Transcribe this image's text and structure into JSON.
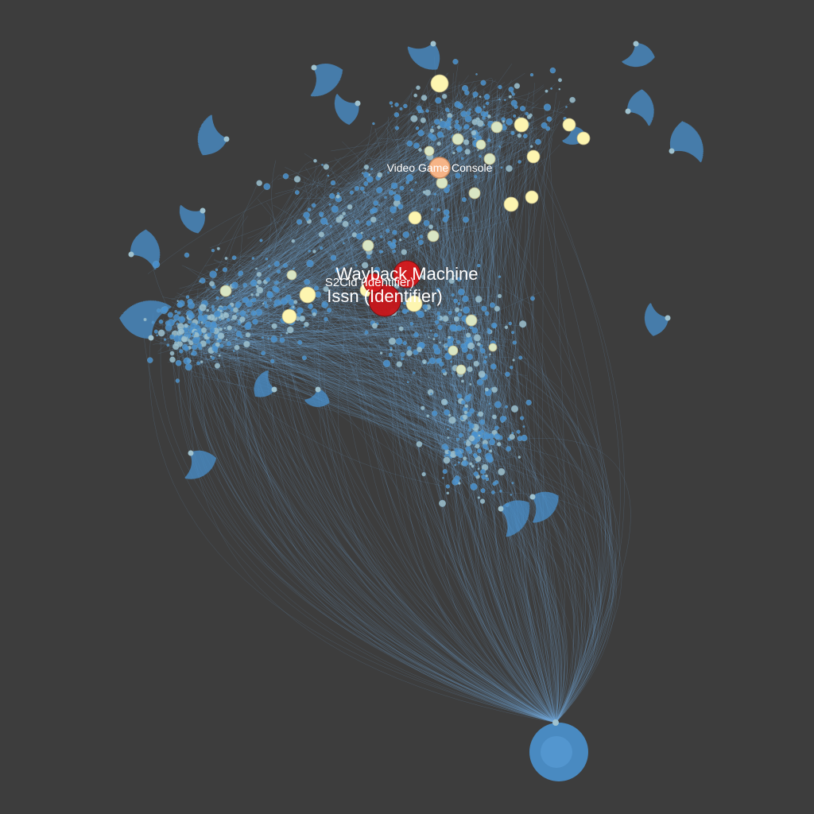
{
  "graph": {
    "labels": {
      "wayback_machine": "Wayback Machine",
      "issn": "Issn (Identifier)",
      "s2cid": "S2Cid (Identifier)",
      "video_game_console": "Video Game Console"
    },
    "colors": {
      "background": "#3d3d3d",
      "edge": "#6fa8d8",
      "node_default": "#4a92cf",
      "node_mid": "#9fc2cf",
      "node_high": "#fdf5b0",
      "node_orange": "#f6b487",
      "node_top": "#d7191c"
    }
  }
}
